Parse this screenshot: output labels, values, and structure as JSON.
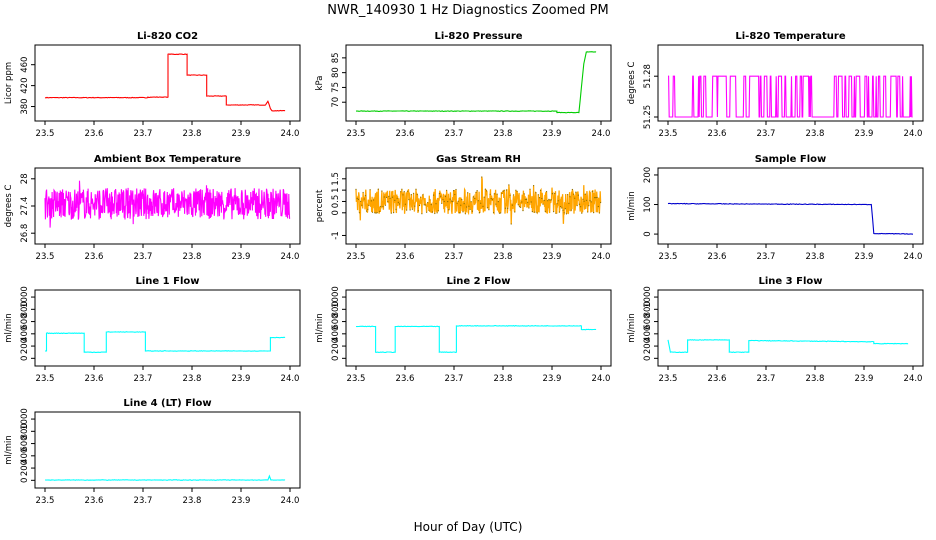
{
  "figure": {
    "title": "NWR_140930  1 Hz Diagnostics Zoomed PM",
    "xlabel": "Hour of Day (UTC)"
  },
  "chart_data": [
    {
      "id": "co2",
      "type": "line",
      "title": "Li-820 CO2",
      "ylabel": "Licor ppm",
      "color": "#ff0000",
      "xlim": [
        23.5,
        24.0
      ],
      "ylim": [
        360,
        490
      ],
      "xticks": [
        23.5,
        23.6,
        23.7,
        23.8,
        23.9,
        24.0
      ],
      "yticks": [
        380,
        420,
        460
      ],
      "series": [
        {
          "x": [
            23.5,
            23.71,
            23.71,
            23.751,
            23.751,
            23.79,
            23.79,
            23.83,
            23.83,
            23.87,
            23.87,
            23.95,
            23.955,
            23.96,
            23.963,
            23.97,
            23.99
          ],
          "values": [
            397,
            397,
            398,
            398,
            480,
            480,
            440,
            440,
            400,
            400,
            383,
            383,
            390,
            376,
            372,
            372,
            372
          ]
        }
      ]
    },
    {
      "id": "pressure",
      "type": "line",
      "title": "Li-820 Pressure",
      "ylabel": "kPa",
      "color": "#00cc00",
      "xlim": [
        23.5,
        24.0
      ],
      "ylim": [
        65,
        88
      ],
      "xticks": [
        23.5,
        23.6,
        23.7,
        23.8,
        23.9,
        24.0
      ],
      "yticks": [
        70,
        75,
        80,
        85
      ],
      "series": [
        {
          "x": [
            23.5,
            23.91,
            23.91,
            23.955,
            23.96,
            23.965,
            23.97,
            23.975,
            23.99
          ],
          "values": [
            67,
            67,
            66.5,
            66.5,
            75,
            83,
            87,
            87,
            87
          ]
        }
      ]
    },
    {
      "id": "licor_temp",
      "type": "line",
      "title": "Li-820 Temperature",
      "ylabel": "degrees C",
      "color": "#ff00ff",
      "xlim": [
        23.5,
        24.0
      ],
      "ylim": [
        51.25,
        51.3
      ],
      "xticks": [
        23.5,
        23.6,
        23.7,
        23.8,
        23.9,
        24.0
      ],
      "yticks": [
        51.25,
        51.28
      ],
      "series": [
        {
          "x": [
            23.5,
            24.0
          ],
          "values": [
            51.25,
            51.28
          ]
        }
      ]
    },
    {
      "id": "box_temp",
      "type": "line",
      "title": "Ambient Box Temperature",
      "ylabel": "degrees C",
      "color": "#ff00ff",
      "xlim": [
        23.5,
        24.0
      ],
      "ylim": [
        26.65,
        28.15
      ],
      "xticks": [
        23.5,
        23.6,
        23.7,
        23.8,
        23.9,
        24.0
      ],
      "yticks": [
        26.8,
        27.4,
        28.0
      ],
      "series": [
        {
          "x": [
            23.5,
            24.0
          ],
          "values": [
            27.45,
            27.45
          ]
        }
      ]
    },
    {
      "id": "rh",
      "type": "line",
      "title": "Gas Stream RH",
      "ylabel": "percent",
      "color": "#ffa500",
      "xlim": [
        23.5,
        24.0
      ],
      "ylim": [
        -1.2,
        1.8
      ],
      "xticks": [
        23.5,
        23.6,
        23.7,
        23.8,
        23.9,
        24.0
      ],
      "yticks": [
        -1.0,
        0.0,
        0.5,
        1.0,
        1.5
      ],
      "series": [
        {
          "x": [
            23.5,
            24.0
          ],
          "values": [
            0.5,
            0.5
          ]
        }
      ]
    },
    {
      "id": "sample_flow",
      "type": "line",
      "title": "Sample Flow",
      "ylabel": "ml/min",
      "color": "#0000cc",
      "xlim": [
        23.5,
        24.0
      ],
      "ylim": [
        -20,
        210
      ],
      "xticks": [
        23.5,
        23.6,
        23.7,
        23.8,
        23.9,
        24.0
      ],
      "yticks": [
        0,
        100,
        200
      ],
      "series": [
        {
          "x": [
            23.5,
            23.91,
            23.915,
            23.92,
            24.0
          ],
          "values": [
            103,
            100,
            100,
            2,
            0
          ]
        }
      ]
    },
    {
      "id": "line1",
      "type": "line",
      "title": "Line 1 Flow",
      "ylabel": "ml/min",
      "color": "#00ffff",
      "xlim": [
        23.5,
        24.0
      ],
      "ylim": [
        -60,
        1050
      ],
      "xticks": [
        23.5,
        23.6,
        23.7,
        23.8,
        23.9,
        24.0
      ],
      "yticks": [
        0,
        200,
        400,
        600,
        800,
        1000
      ],
      "series": [
        {
          "x": [
            23.5,
            23.503,
            23.503,
            23.58,
            23.58,
            23.625,
            23.625,
            23.705,
            23.705,
            23.96,
            23.96,
            23.99
          ],
          "values": [
            120,
            120,
            410,
            410,
            100,
            100,
            430,
            430,
            120,
            120,
            340,
            340
          ]
        }
      ]
    },
    {
      "id": "line2",
      "type": "line",
      "title": "Line 2 Flow",
      "ylabel": "ml/min",
      "color": "#00ffff",
      "xlim": [
        23.5,
        24.0
      ],
      "ylim": [
        -60,
        1050
      ],
      "xticks": [
        23.5,
        23.6,
        23.7,
        23.8,
        23.9,
        24.0
      ],
      "yticks": [
        0,
        200,
        400,
        600,
        800,
        1000
      ],
      "series": [
        {
          "x": [
            23.5,
            23.54,
            23.54,
            23.58,
            23.58,
            23.67,
            23.67,
            23.705,
            23.705,
            23.96,
            23.96,
            23.99
          ],
          "values": [
            520,
            520,
            100,
            100,
            520,
            520,
            100,
            100,
            530,
            530,
            470,
            470
          ]
        }
      ]
    },
    {
      "id": "line3",
      "type": "line",
      "title": "Line 3 Flow",
      "ylabel": "ml/min",
      "color": "#00ffff",
      "xlim": [
        23.5,
        24.0
      ],
      "ylim": [
        -60,
        1050
      ],
      "xticks": [
        23.5,
        23.6,
        23.7,
        23.8,
        23.9,
        24.0
      ],
      "yticks": [
        0,
        200,
        400,
        600,
        800,
        1000
      ],
      "series": [
        {
          "x": [
            23.5,
            23.505,
            23.505,
            23.54,
            23.54,
            23.625,
            23.625,
            23.665,
            23.665,
            23.92,
            23.92,
            23.99
          ],
          "values": [
            300,
            100,
            100,
            100,
            300,
            300,
            100,
            100,
            290,
            270,
            240,
            240
          ]
        }
      ]
    },
    {
      "id": "line4",
      "type": "line",
      "title": "Line 4 (LT) Flow",
      "ylabel": "ml/min",
      "color": "#00ffff",
      "xlim": [
        23.5,
        24.0
      ],
      "ylim": [
        -60,
        1050
      ],
      "xticks": [
        23.5,
        23.6,
        23.7,
        23.8,
        23.9,
        24.0
      ],
      "yticks": [
        0,
        200,
        400,
        600,
        800,
        1000
      ],
      "series": [
        {
          "x": [
            23.5,
            23.955,
            23.958,
            23.961,
            23.99
          ],
          "values": [
            5,
            5,
            70,
            5,
            5
          ]
        }
      ]
    }
  ]
}
